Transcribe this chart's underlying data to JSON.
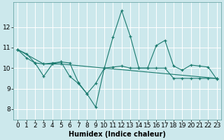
{
  "xlabel": "Humidex (Indice chaleur)",
  "bg_color": "#cce8ec",
  "line_color": "#1a7a6e",
  "grid_color": "#ffffff",
  "xlim": [
    -0.5,
    23.5
  ],
  "ylim": [
    7.5,
    13.2
  ],
  "yticks": [
    8,
    9,
    10,
    11,
    12
  ],
  "xticks": [
    0,
    1,
    2,
    3,
    4,
    5,
    6,
    7,
    8,
    9,
    10,
    11,
    12,
    13,
    14,
    15,
    16,
    17,
    18,
    19,
    20,
    21,
    22,
    23
  ],
  "line1_x": [
    0,
    1,
    2,
    3,
    4,
    5,
    6,
    7,
    8,
    9,
    10,
    11,
    12,
    13,
    14,
    15,
    16,
    17,
    18,
    19,
    20,
    21,
    22,
    23
  ],
  "line1_y": [
    10.9,
    10.7,
    10.25,
    10.2,
    10.25,
    10.3,
    9.6,
    9.25,
    8.75,
    8.1,
    10.0,
    11.5,
    12.8,
    11.55,
    10.0,
    10.0,
    11.1,
    11.35,
    10.1,
    9.9,
    10.15,
    10.1,
    10.05,
    9.45
  ],
  "line2_x": [
    0,
    1,
    2,
    3,
    4,
    5,
    6,
    7,
    8,
    9,
    10,
    11,
    12,
    13,
    14,
    15,
    16,
    17,
    18,
    19,
    20,
    21,
    22,
    23
  ],
  "line2_y": [
    10.9,
    10.5,
    10.25,
    9.6,
    10.2,
    10.3,
    10.25,
    9.3,
    8.75,
    9.25,
    10.0,
    10.05,
    10.1,
    10.0,
    10.0,
    10.0,
    10.0,
    10.0,
    9.5,
    9.5,
    9.5,
    9.5,
    9.5,
    9.5
  ],
  "line3_x": [
    0,
    3,
    4,
    5,
    10,
    23
  ],
  "line3_y": [
    10.9,
    10.2,
    10.2,
    10.2,
    10.0,
    9.5
  ],
  "label_fontsize": 7,
  "tick_fontsize": 6.5
}
